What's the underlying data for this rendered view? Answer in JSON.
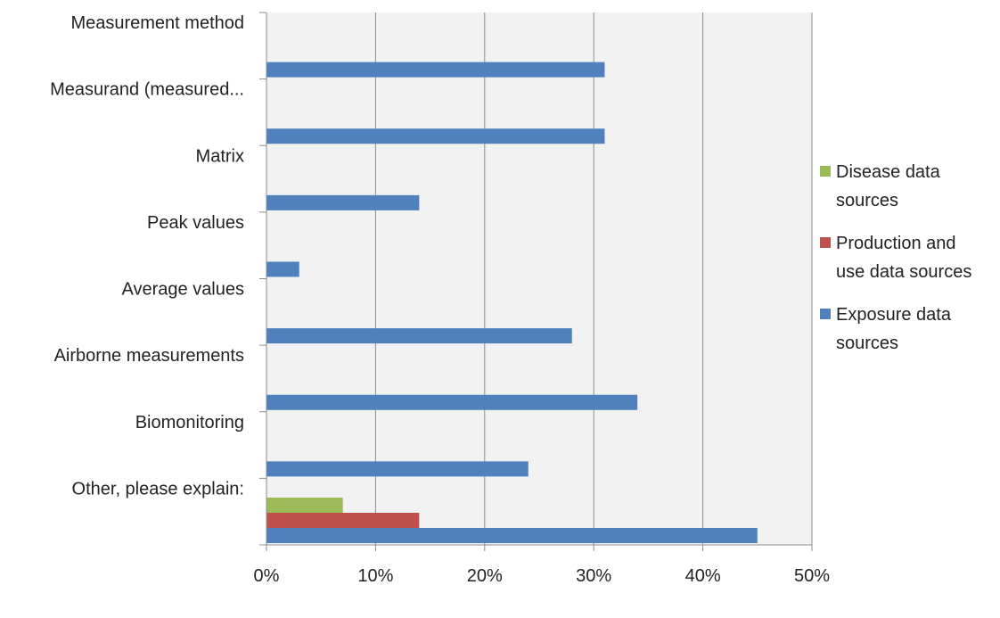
{
  "chart_data": {
    "type": "bar",
    "orientation": "horizontal",
    "categories": [
      "Measurement method",
      "Measurand (measured...",
      "Matrix",
      "Peak values",
      "Average values",
      "Airborne measurements",
      "Biomonitoring",
      "Other, please explain:"
    ],
    "series": [
      {
        "name": "Disease data sources",
        "color": "#9bbb59",
        "values": [
          0,
          0,
          0,
          0,
          0,
          0,
          0,
          7
        ]
      },
      {
        "name": "Production and use data sources",
        "color": "#c0504d",
        "values": [
          0,
          0,
          0,
          0,
          0,
          0,
          0,
          14
        ]
      },
      {
        "name": "Exposure data sources",
        "color": "#4f81bd",
        "values": [
          31,
          31,
          14,
          3,
          28,
          34,
          24,
          45
        ]
      }
    ],
    "xlim": [
      0,
      50
    ],
    "xticks": [
      0,
      10,
      20,
      30,
      40,
      50
    ],
    "xtick_labels": [
      "0%",
      "10%",
      "20%",
      "30%",
      "40%",
      "50%"
    ],
    "legend_entries": [
      {
        "series": 0,
        "lines": [
          "Disease data",
          "sources"
        ]
      },
      {
        "series": 1,
        "lines": [
          "Production and",
          "use data sources"
        ]
      },
      {
        "series": 2,
        "lines": [
          "Exposure data",
          "sources"
        ]
      }
    ],
    "legend_position": "right",
    "grid": true,
    "plot_background": "#f2f2f2"
  }
}
